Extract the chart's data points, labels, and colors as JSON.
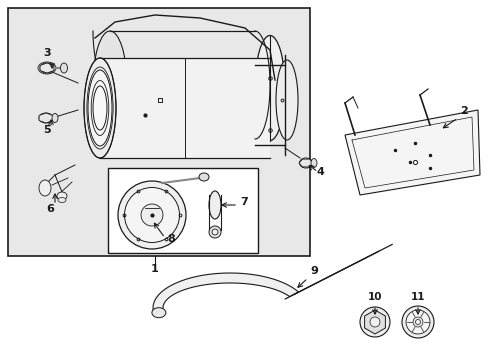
{
  "bg_color": "#ffffff",
  "box_bg": "#e8e8e8",
  "lc": "#1a1a1a",
  "lw": 0.9,
  "fig_width": 4.89,
  "fig_height": 3.6,
  "dpi": 100
}
